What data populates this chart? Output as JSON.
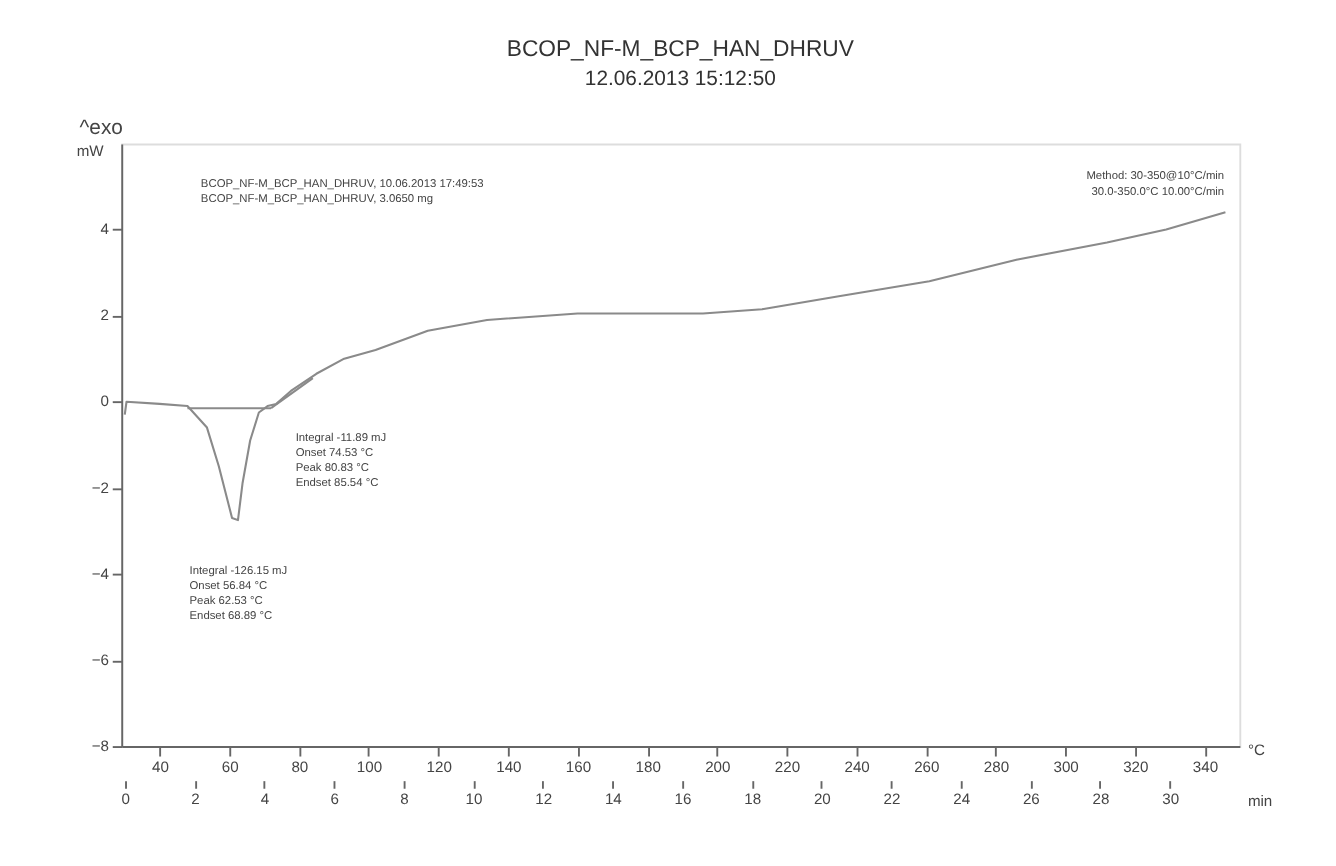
{
  "chart_data": {
    "type": "line",
    "title": "BCOP_NF-M_BCP_HAN_DHRUV",
    "subtitle": "12.06.2013 15:12:50",
    "xlabel": "°C",
    "ylabel": "mW",
    "x2label": "min",
    "xlim": [
      29,
      350
    ],
    "xticks": [
      40,
      60,
      80,
      100,
      120,
      140,
      160,
      180,
      200,
      220,
      240,
      260,
      280,
      300,
      320,
      340
    ],
    "x2lim": [
      -0.1,
      32
    ],
    "x2ticks": [
      0,
      2,
      4,
      6,
      8,
      10,
      12,
      14,
      16,
      18,
      20,
      22,
      24,
      26,
      28,
      30
    ],
    "ylim": [
      -8,
      6
    ],
    "yticks": [
      -8,
      -6,
      -4,
      -2,
      0,
      2,
      4
    ],
    "grid": false,
    "marker": "none",
    "line_style": "solid",
    "series": [
      {
        "color": "#8a8a8a",
        "x": [
          30,
          30.5,
          40,
          48,
          53.6,
          57,
          60.8,
          62.5,
          63.8,
          66,
          68.5,
          71,
          73.5,
          77.7,
          85,
          93,
          102,
          117,
          134,
          160,
          179,
          196,
          213,
          235,
          261,
          286,
          312,
          329,
          346
        ],
        "values": [
          -0.3,
          0.0,
          -0.05,
          -0.1,
          -0.6,
          -1.5,
          -2.7,
          -2.75,
          -1.9,
          -0.9,
          -0.25,
          -0.1,
          -0.05,
          0.25,
          0.65,
          1.0,
          1.2,
          1.65,
          1.9,
          2.05,
          2.05,
          2.05,
          2.15,
          2.45,
          2.8,
          3.3,
          3.7,
          4.0,
          4.4
        ]
      },
      {
        "type": "line",
        "color": "#8a8a8a",
        "x": [
          48,
          72
        ],
        "values": [
          -0.15,
          -0.15
        ]
      },
      {
        "type": "line",
        "color": "#8a8a8a",
        "x": [
          72,
          84
        ],
        "values": [
          -0.15,
          0.55
        ]
      }
    ],
    "annotations": [
      "^exo",
      "BCOP_NF-M_BCP_HAN_DHRUV, 10.06.2013 17:49:53",
      "BCOP_NF-M_BCP_HAN_DHRUV, 3.0650 mg",
      "Method: 30-350@10°C/min",
      "30.0-350.0°C 10.00°C/min",
      "Integral -126.15 mJ\nOnset 56.84 °C\nPeak 62.53 °C\nEndset 68.89 °C",
      "Integral -11.89 mJ\nOnset 74.53 °C\nPeak 80.83 °C\nEndset 85.54 °C"
    ]
  }
}
